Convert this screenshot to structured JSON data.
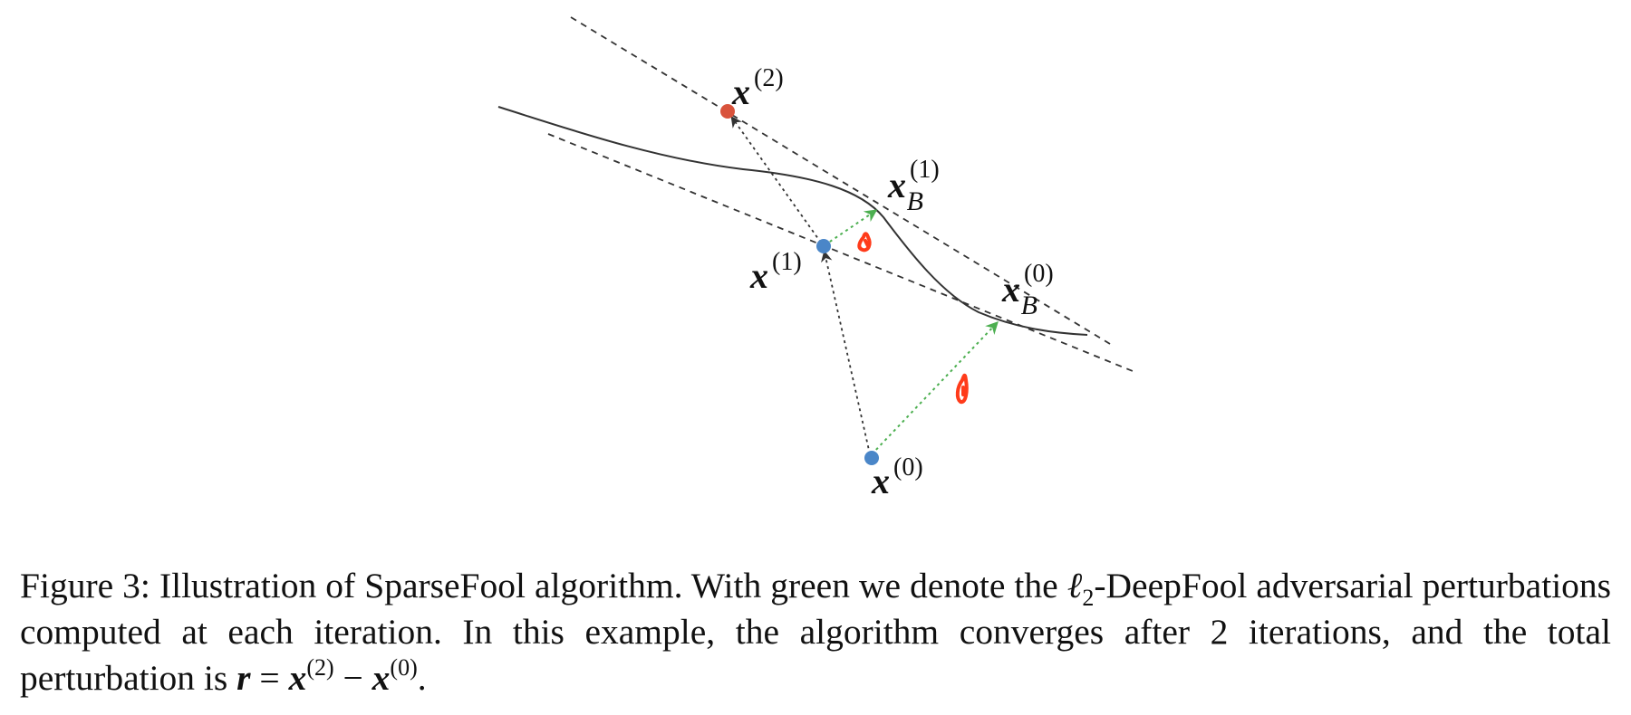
{
  "figure": {
    "labels": {
      "x2": {
        "base": "x",
        "sup": "(2)"
      },
      "xB1": {
        "base": "x",
        "sup": "(1)",
        "sub": "B"
      },
      "x1": {
        "base": "x",
        "sup": "(1)"
      },
      "xB0": {
        "base": "x",
        "sup": "(0)",
        "sub": "B"
      },
      "x0": {
        "base": "x",
        "sup": "(0)"
      }
    },
    "colors": {
      "boundary": "#333333",
      "tangent": "#333333",
      "dotted_path": "#333333",
      "deepfool_perturbation": "#4caf50",
      "iterate_point": "#4a86c8",
      "final_point": "#d9533c",
      "annotation": "#ff3b1a"
    }
  },
  "caption": {
    "figure_label": "Figure 3:",
    "text_1": "Illustration of SparseFool algorithm. With green we denote the",
    "ell": "ℓ",
    "ell_sub": "2",
    "text_2": "-DeepFool adversarial perturbations computed at each iteration. In this example, the algorithm converges after 2 iterations, and the total perturbation is",
    "r": "r",
    "eq": " = ",
    "x": "x",
    "sup_a": "(2)",
    "minus": " − ",
    "sup_b": "(0)",
    "end": "."
  }
}
